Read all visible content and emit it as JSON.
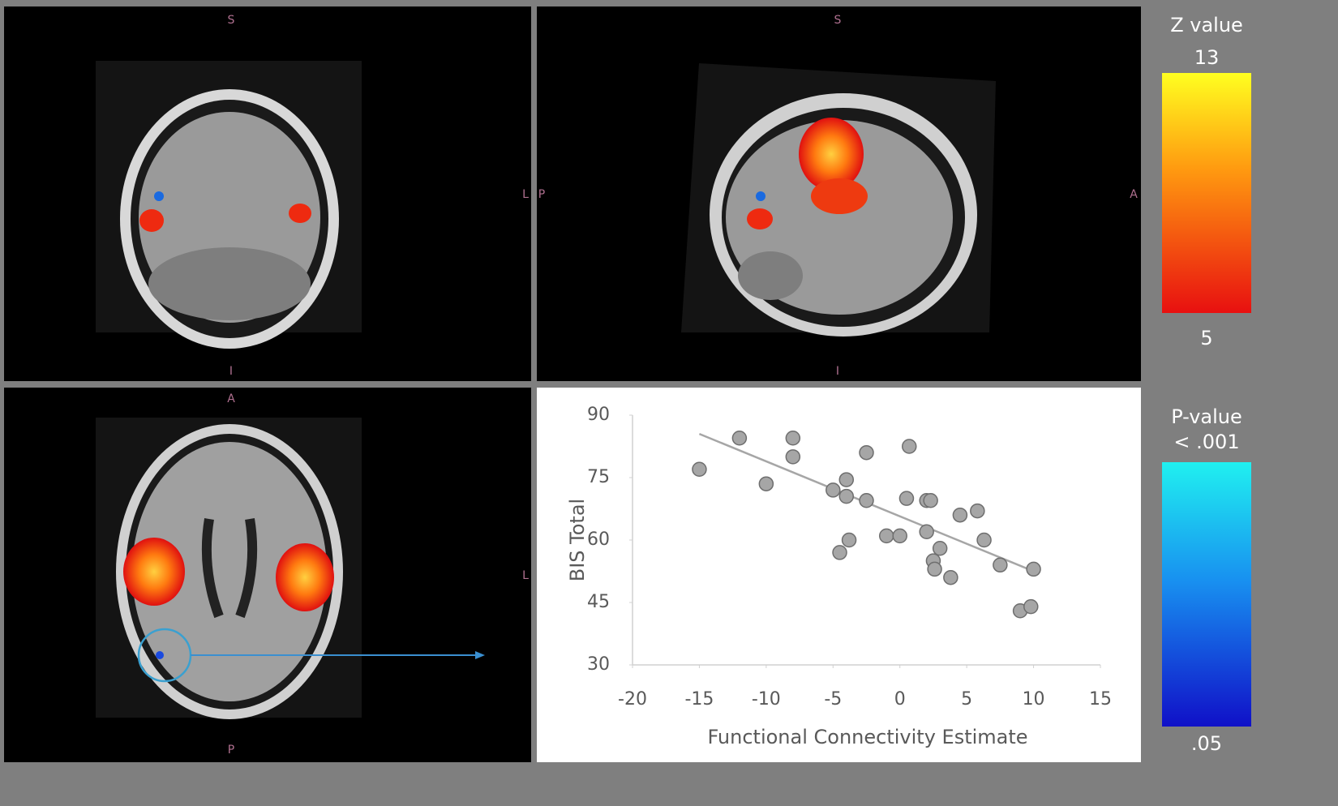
{
  "views": [
    {
      "labels": [
        "S",
        "I",
        "L"
      ]
    },
    {
      "labels": [
        "P",
        "S",
        "I",
        "A"
      ]
    },
    {
      "labels": [
        "A",
        "L",
        "P"
      ]
    }
  ],
  "colorbars": [
    {
      "title": "Z value",
      "top": "13",
      "bottom": "5"
    },
    {
      "title": "P-value",
      "top": "< .001",
      "bottom": ".05"
    }
  ],
  "chart_data": {
    "type": "scatter",
    "x_label": "Functional Connectivity Estimate",
    "y_label": "BIS Total",
    "x": [
      -15,
      -12,
      -10,
      -8,
      -8,
      -5,
      -4,
      -4,
      -3.8,
      -4.5,
      -2.5,
      -2.5,
      -1,
      0,
      0.5,
      0.7,
      2,
      2.3,
      2,
      2.5,
      2.6,
      3,
      3.8,
      4.5,
      5.8,
      6.3,
      7.5,
      9,
      9.8,
      10
    ],
    "values": [
      77,
      84.5,
      73.5,
      84.5,
      80,
      72,
      74.5,
      70.5,
      60,
      57,
      81,
      69.5,
      61,
      61,
      70,
      82.5,
      69.5,
      69.5,
      62,
      55,
      53,
      58,
      51,
      66,
      67,
      60,
      54,
      43,
      44,
      53
    ],
    "color": "#a6a6a6",
    "trendline": {
      "x": [
        -15,
        10
      ],
      "values": [
        85.5,
        52.5
      ],
      "color": "#a6a6a6"
    },
    "xlim": [
      -20,
      15
    ],
    "xticks": [
      -20,
      -15,
      -10,
      -5,
      0,
      5,
      10,
      15
    ],
    "ylim": [
      30,
      90
    ],
    "yticks": [
      30,
      45,
      60,
      75,
      90
    ],
    "grid": false
  }
}
